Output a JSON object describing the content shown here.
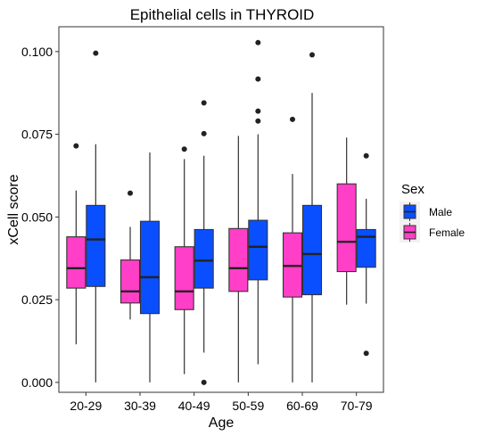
{
  "chart_data": {
    "type": "boxplot",
    "title": "Epithelial cells in THYROID",
    "xlabel": "Age",
    "ylabel": "xCell score",
    "ylim": [
      -0.003,
      0.1075
    ],
    "yticks": [
      0.0,
      0.025,
      0.05,
      0.075,
      0.1
    ],
    "ytick_labels": [
      "0.000",
      "0.025",
      "0.050",
      "0.075",
      "0.100"
    ],
    "categories": [
      "20-29",
      "30-39",
      "40-49",
      "50-59",
      "60-69",
      "70-79"
    ],
    "grid": false,
    "legend": {
      "title": "Sex",
      "placement": "right",
      "entries": [
        "Male",
        "Female"
      ]
    },
    "series": [
      {
        "name": "Female",
        "color": "#FF3FC7",
        "boxes": [
          {
            "category": "20-29",
            "whisker_low": 0.0115,
            "q1": 0.0285,
            "median": 0.0345,
            "q3": 0.044,
            "whisker_high": 0.058,
            "outliers": [
              0.0715
            ]
          },
          {
            "category": "30-39",
            "whisker_low": 0.019,
            "q1": 0.024,
            "median": 0.0275,
            "q3": 0.037,
            "whisker_high": 0.047,
            "outliers": [
              0.0572
            ]
          },
          {
            "category": "40-49",
            "whisker_low": 0.0025,
            "q1": 0.022,
            "median": 0.0275,
            "q3": 0.041,
            "whisker_high": 0.0675,
            "outliers": [
              0.0705
            ]
          },
          {
            "category": "50-59",
            "whisker_low": 0.0,
            "q1": 0.0275,
            "median": 0.0345,
            "q3": 0.0465,
            "whisker_high": 0.0745,
            "outliers": []
          },
          {
            "category": "60-69",
            "whisker_low": 0.0,
            "q1": 0.0258,
            "median": 0.0352,
            "q3": 0.0452,
            "whisker_high": 0.063,
            "outliers": [
              0.0795
            ]
          },
          {
            "category": "70-79",
            "whisker_low": 0.0235,
            "q1": 0.0335,
            "median": 0.0425,
            "q3": 0.06,
            "whisker_high": 0.074,
            "outliers": []
          }
        ]
      },
      {
        "name": "Male",
        "color": "#0A4FFF",
        "boxes": [
          {
            "category": "20-29",
            "whisker_low": 0.0,
            "q1": 0.029,
            "median": 0.0432,
            "q3": 0.0535,
            "whisker_high": 0.072,
            "outliers": [
              0.0995
            ]
          },
          {
            "category": "30-39",
            "whisker_low": 0.0,
            "q1": 0.0208,
            "median": 0.0318,
            "q3": 0.0487,
            "whisker_high": 0.0695,
            "outliers": []
          },
          {
            "category": "40-49",
            "whisker_low": 0.009,
            "q1": 0.0285,
            "median": 0.0368,
            "q3": 0.0462,
            "whisker_high": 0.0685,
            "outliers": [
              0.0,
              0.0752,
              0.0845
            ]
          },
          {
            "category": "50-59",
            "whisker_low": 0.0055,
            "q1": 0.031,
            "median": 0.041,
            "q3": 0.049,
            "whisker_high": 0.075,
            "outliers": [
              0.079,
              0.082,
              0.0917,
              0.1027
            ]
          },
          {
            "category": "60-69",
            "whisker_low": 0.0,
            "q1": 0.0265,
            "median": 0.0388,
            "q3": 0.0535,
            "whisker_high": 0.0875,
            "outliers": [
              0.099
            ]
          },
          {
            "category": "70-79",
            "whisker_low": 0.0238,
            "q1": 0.0348,
            "median": 0.044,
            "q3": 0.0462,
            "whisker_high": 0.0555,
            "outliers": [
              0.0088,
              0.0685
            ]
          }
        ]
      }
    ]
  }
}
